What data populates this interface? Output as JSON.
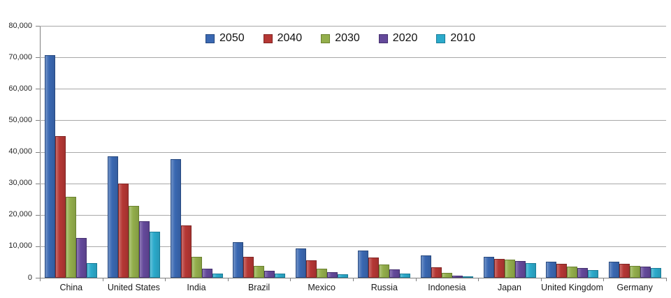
{
  "chart_data": {
    "type": "bar",
    "title": "",
    "categories": [
      "China",
      "United States",
      "India",
      "Brazil",
      "Mexico",
      "Russia",
      "Indonesia",
      "Japan",
      "United Kingdom",
      "Germany"
    ],
    "series": [
      {
        "name": "2050",
        "color": "#3A68B2",
        "edge": "#27497F",
        "values": [
          70710,
          38514,
          37668,
          11366,
          9340,
          8580,
          7010,
          6677,
          5133,
          5024
        ]
      },
      {
        "name": "2040",
        "color": "#B53734",
        "edge": "#822625",
        "values": [
          45022,
          29823,
          16510,
          6631,
          5471,
          6320,
          3286,
          6039,
          4344,
          4388
        ]
      },
      {
        "name": "2030",
        "color": "#93AE4B",
        "edge": "#6B822F",
        "values": [
          25610,
          22817,
          6683,
          3720,
          2830,
          4265,
          1479,
          5810,
          3595,
          3761
        ]
      },
      {
        "name": "2020",
        "color": "#64499A",
        "edge": "#463070",
        "values": [
          12630,
          17978,
          2848,
          2194,
          1742,
          2554,
          752,
          5224,
          3101,
          3519
        ]
      },
      {
        "name": "2010",
        "color": "#2BAACB",
        "edge": "#1A7C97",
        "values": [
          4667,
          14535,
          1256,
          1346,
          1009,
          1371,
          419,
          4604,
          2546,
          3083
        ]
      }
    ],
    "legend_entries": [
      "2050",
      "2040",
      "2030",
      "2020",
      "2010"
    ],
    "legend_position": "top-center",
    "ylim": [
      0,
      80000
    ],
    "ytick_step": 10000,
    "ytick_labels_top_to_bottom": [
      "80,000",
      "70,000",
      "60,000",
      "50,000",
      "40,000",
      "30,000",
      "20,000",
      "10,000",
      "0"
    ],
    "grid": true,
    "xlabel": "",
    "ylabel": ""
  }
}
